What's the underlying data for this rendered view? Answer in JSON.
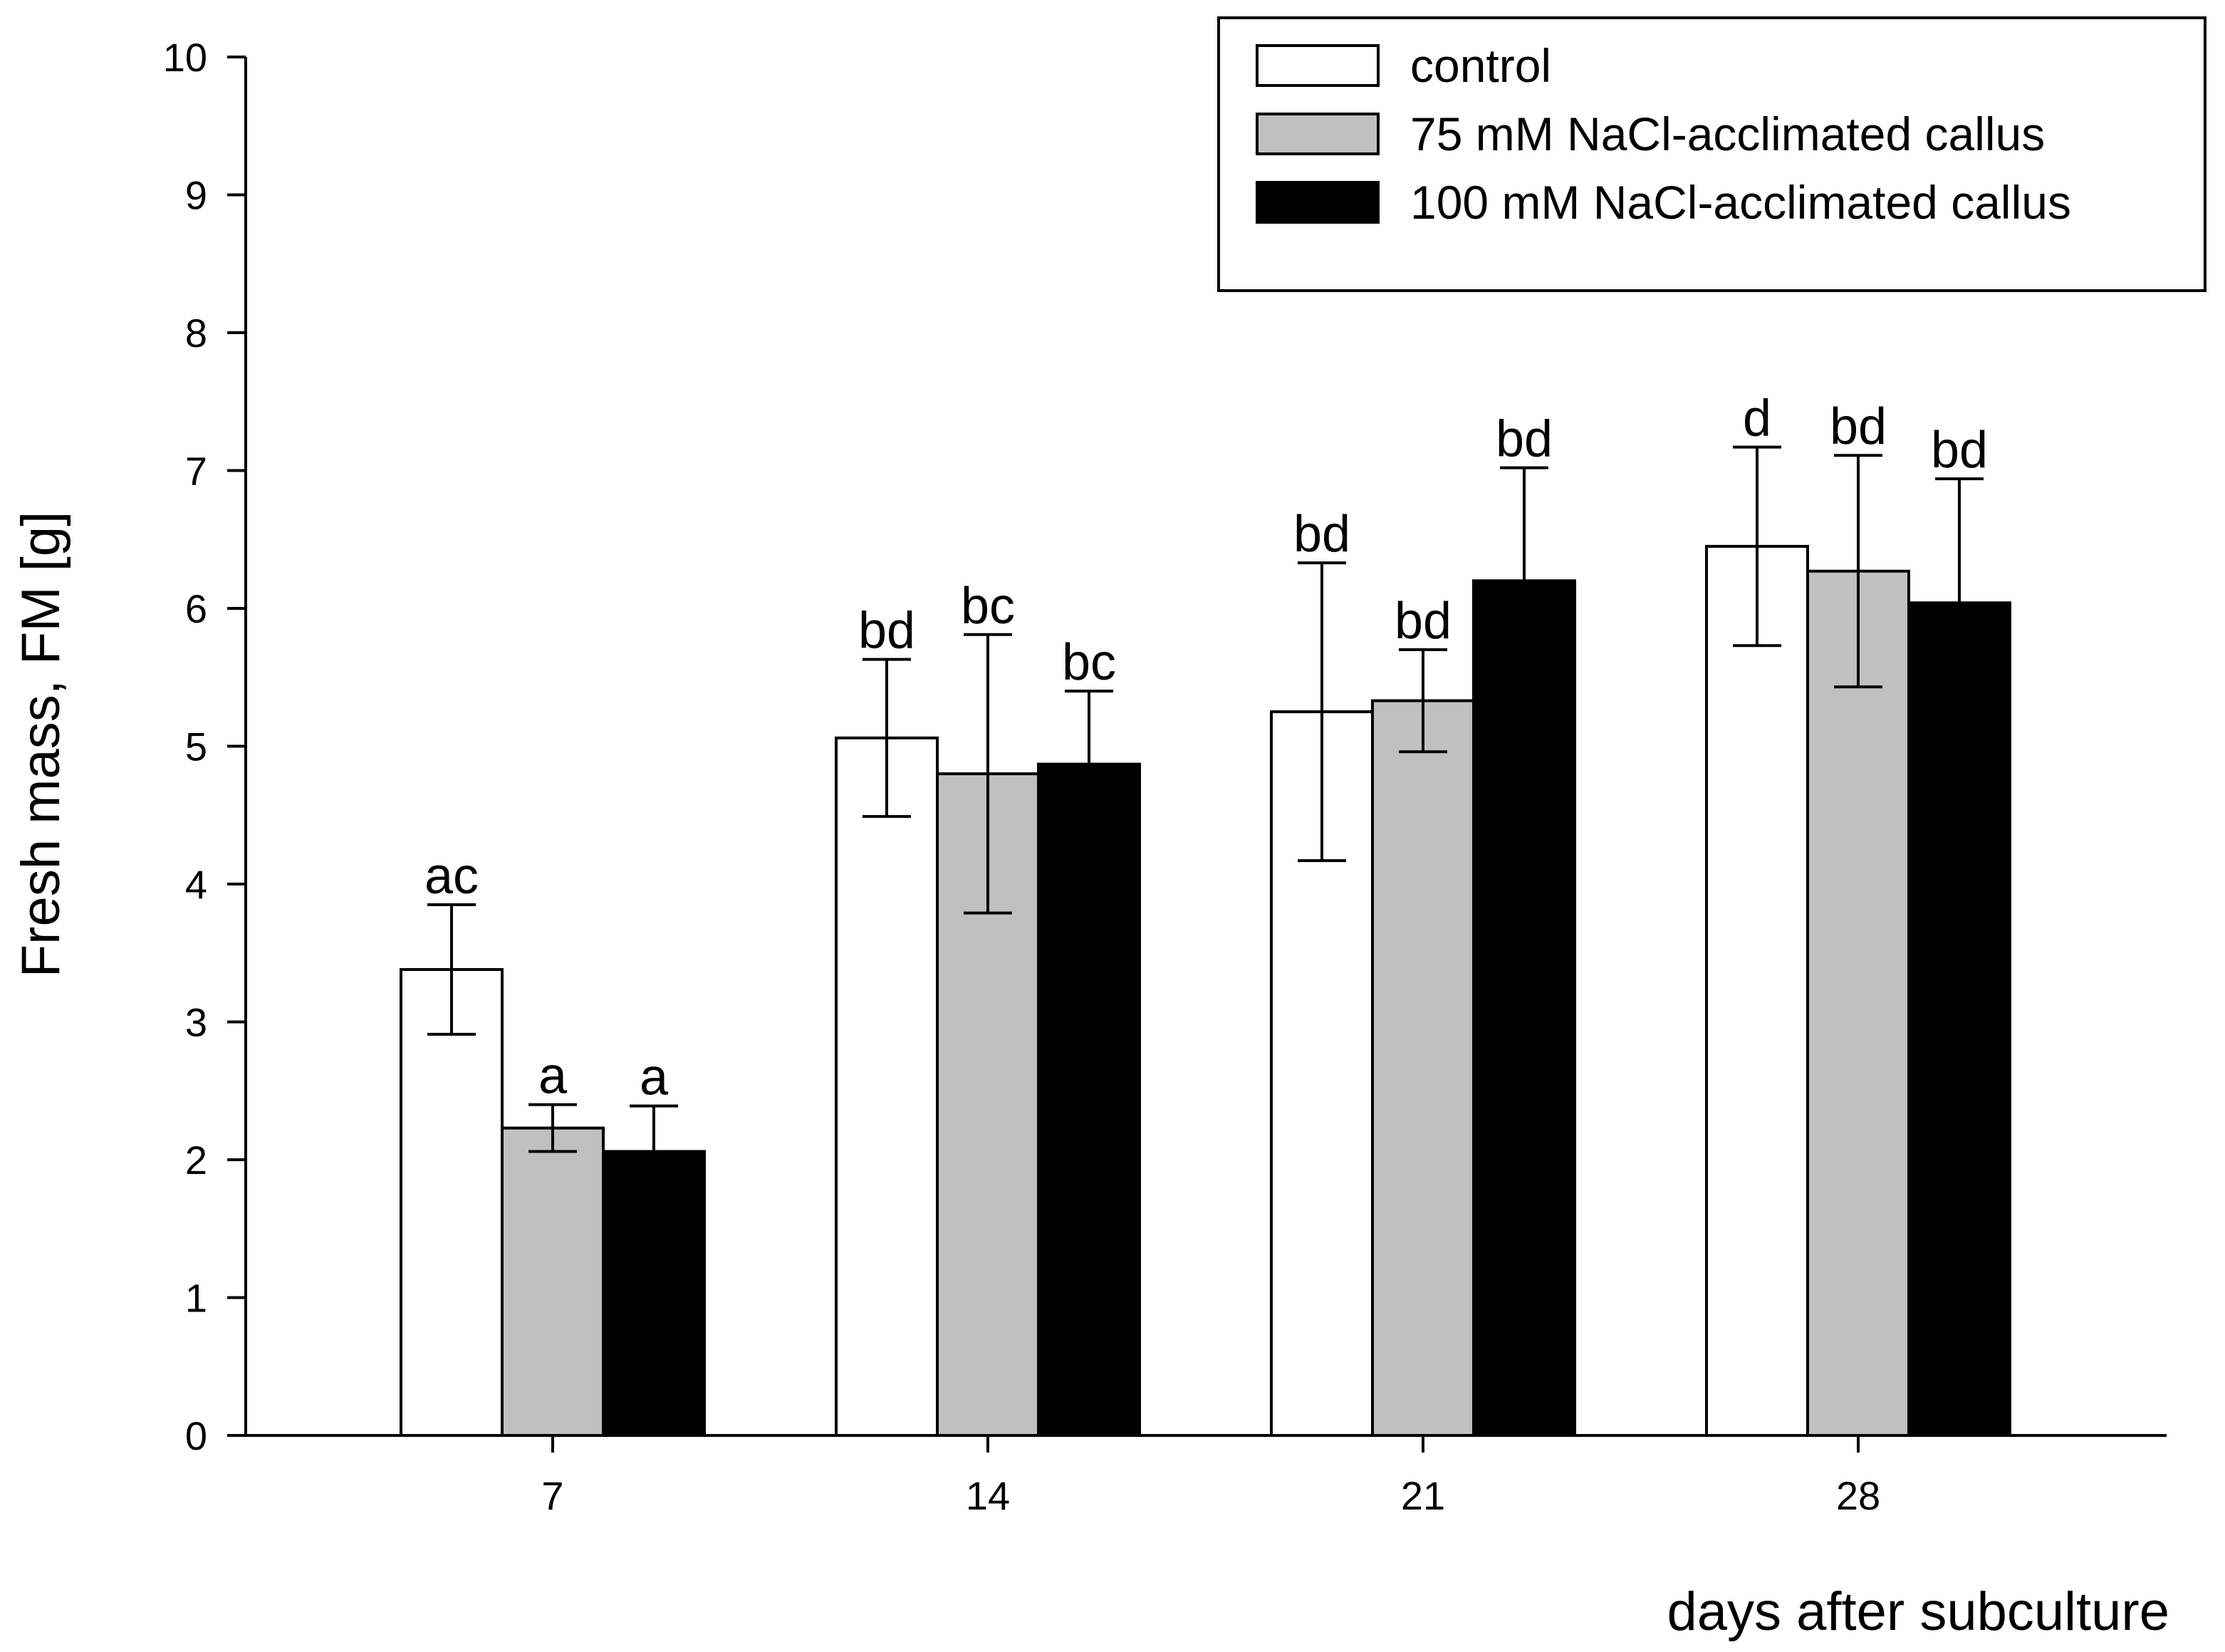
{
  "chart_data": {
    "type": "bar",
    "xlabel": "days after subculture",
    "ylabel": "Fresh mass, FM [g]",
    "categories": [
      "7",
      "14",
      "21",
      "28"
    ],
    "ylim": [
      0,
      10
    ],
    "yticks": [
      0,
      1,
      2,
      3,
      4,
      5,
      6,
      7,
      8,
      9,
      10
    ],
    "yticklabels": [
      "0",
      "1",
      "2",
      "3",
      "4",
      "5",
      "6",
      "7",
      "8",
      "9",
      "10"
    ],
    "grid": false,
    "legend_position": "top-right",
    "series": [
      {
        "name": "control",
        "color": "#ffffff",
        "values": [
          3.38,
          5.06,
          5.25,
          6.45
        ],
        "errors": [
          0.47,
          0.57,
          1.08,
          0.72
        ],
        "labels": [
          "ac",
          "bd",
          "bd",
          "d"
        ]
      },
      {
        "name": "75 mM NaCl-acclimated callus",
        "color": "#c0c0c0",
        "values": [
          2.23,
          4.8,
          5.33,
          6.27
        ],
        "errors": [
          0.17,
          1.01,
          0.37,
          0.84
        ],
        "labels": [
          "a",
          "bc",
          "bd",
          "bd"
        ]
      },
      {
        "name": "100 mM NaCl-acclimated callus",
        "color": "#000000",
        "values": [
          2.06,
          4.87,
          6.2,
          6.04
        ],
        "errors": [
          0.33,
          0.53,
          0.82,
          0.9
        ],
        "labels": [
          "a",
          "bc",
          "bd",
          "bd"
        ]
      }
    ]
  }
}
